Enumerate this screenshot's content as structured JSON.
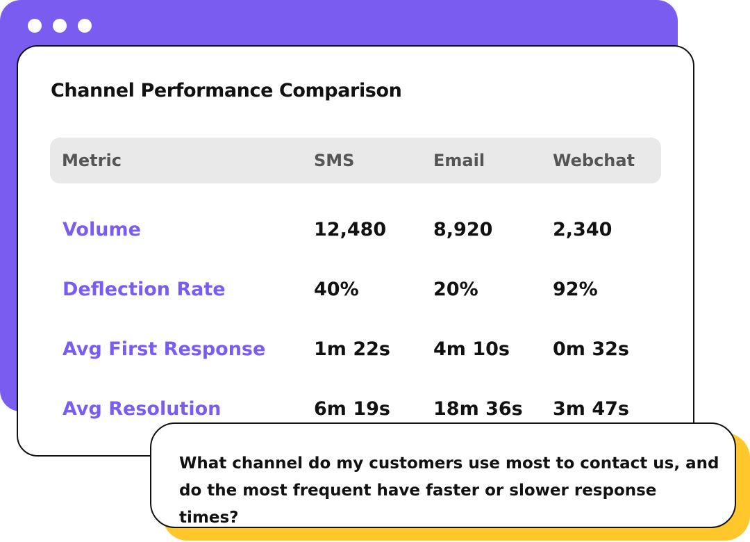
{
  "card": {
    "title": "Channel Performance Comparison"
  },
  "table": {
    "headers": [
      "Metric",
      "SMS",
      "Email",
      "Webchat"
    ],
    "rows": [
      {
        "metric": "Volume",
        "values": [
          "12,480",
          "8,920",
          "2,340"
        ]
      },
      {
        "metric": "Deflection Rate",
        "values": [
          "40%",
          "20%",
          "92%"
        ]
      },
      {
        "metric": "Avg First Response",
        "values": [
          "1m 22s",
          "4m 10s",
          "0m 32s"
        ]
      },
      {
        "metric": "Avg Resolution",
        "values": [
          "6m 19s",
          "18m 36s",
          "3m 47s"
        ]
      }
    ]
  },
  "chat": {
    "question": "What channel do my customers use most to contact us, and do the most frequent have faster or slower response times?"
  },
  "colors": {
    "accent": "#7b5cf0",
    "highlight": "#ffc72c",
    "header_bg": "#e9e9e9",
    "text": "#111111",
    "muted": "#555555"
  },
  "icons": {
    "window_controls": [
      "window-dot-icon",
      "window-dot-icon",
      "window-dot-icon"
    ]
  }
}
